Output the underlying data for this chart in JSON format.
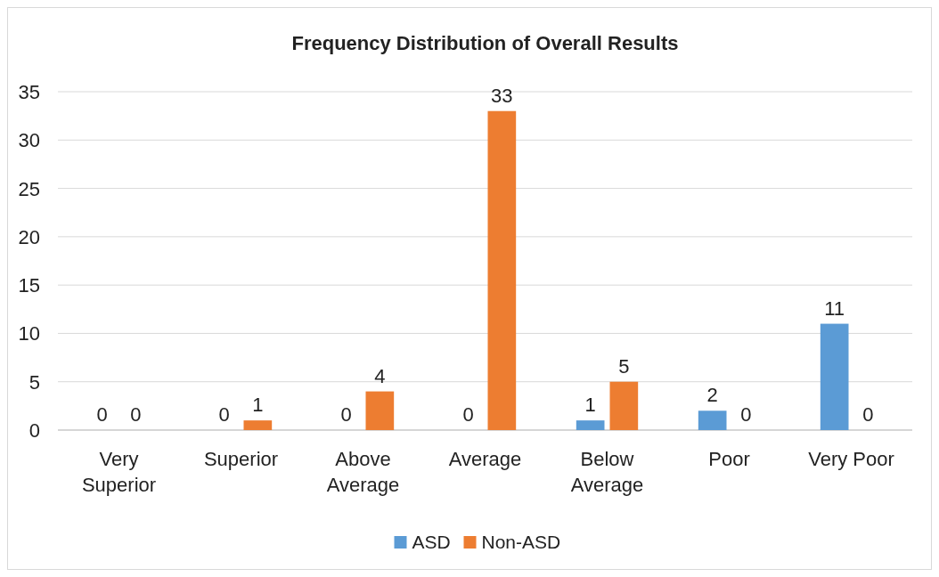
{
  "chart_data": {
    "type": "bar",
    "title": "Frequency Distribution of Overall Results",
    "categories": [
      "Very Superior",
      "Superior",
      "Above Average",
      "Average",
      "Below Average",
      "Poor",
      "Very Poor"
    ],
    "series": [
      {
        "name": "ASD",
        "color": "#5b9bd5",
        "values": [
          0,
          0,
          0,
          0,
          1,
          2,
          11
        ]
      },
      {
        "name": "Non-ASD",
        "color": "#ed7d31",
        "values": [
          0,
          1,
          4,
          33,
          5,
          0,
          0
        ]
      }
    ],
    "ylim": [
      0,
      35
    ],
    "yticks": [
      0,
      5,
      10,
      15,
      20,
      25,
      30,
      35
    ],
    "grid": "y",
    "legend": "bottom",
    "data_labels": true
  }
}
